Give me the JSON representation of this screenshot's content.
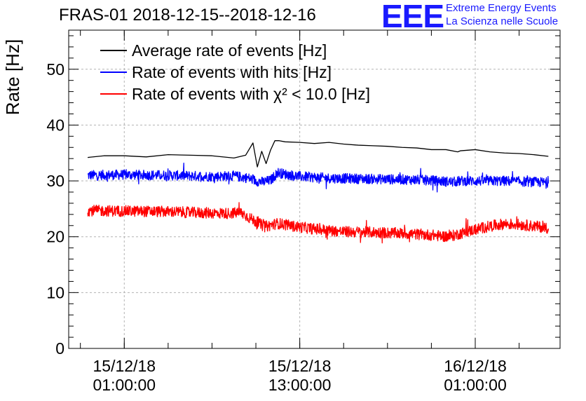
{
  "header": {
    "title": "FRAS-01 2018-12-15--2018-12-16",
    "logo_letters": "EEE",
    "logo_line1": "Extreme Energy Events",
    "logo_line2": "La Scienza nelle Scuole"
  },
  "colors": {
    "average": "#000000",
    "hits": "#0000ff",
    "chi2": "#ff0000",
    "grid": "#b3b3b3",
    "logo": "#1a1aff"
  },
  "chart_data": {
    "type": "line",
    "title": "FRAS-01 2018-12-15--2018-12-16",
    "ylabel": "Rate [Hz]",
    "xlabel": "",
    "x_unit": "hours since 2018-12-15 00:00",
    "xlim": [
      -2.8,
      30.8
    ],
    "ylim": [
      0,
      57
    ],
    "y_ticks": [
      0,
      10,
      20,
      30,
      40,
      50
    ],
    "x_ticks": [
      {
        "x": 1,
        "line1": "15/12/18",
        "line2": "01:00:00"
      },
      {
        "x": 13,
        "line1": "15/12/18",
        "line2": "13:00:00"
      },
      {
        "x": 25,
        "line1": "16/12/18",
        "line2": "01:00:00"
      }
    ],
    "grid": true,
    "legend_position": "top-left",
    "series": [
      {
        "name": "Average rate of events [Hz]",
        "color": "#000000",
        "x": [
          -1.5,
          -0.4,
          1,
          2.5,
          4,
          5.5,
          7,
          8.5,
          9.3,
          9.8,
          10.1,
          10.4,
          10.7,
          11,
          11.3,
          11.6,
          12,
          13,
          14,
          15,
          16,
          17,
          18,
          19,
          20,
          21,
          22,
          23,
          23.8,
          24,
          25,
          26,
          27,
          28,
          29,
          30
        ],
        "y": [
          34.2,
          34.5,
          34.5,
          34.3,
          34.7,
          34.6,
          34.5,
          34.1,
          34.6,
          36.8,
          32.5,
          35.3,
          33.1,
          35.5,
          37.2,
          37.2,
          37.0,
          36.9,
          36.7,
          36.9,
          36.6,
          36.4,
          36.3,
          36.2,
          36.0,
          35.9,
          35.6,
          35.6,
          35.2,
          35.4,
          35.6,
          35.2,
          35.0,
          34.9,
          34.7,
          34.4
        ]
      },
      {
        "name": "Rate of events with hits [Hz]",
        "color": "#0000ff",
        "x": [
          -1.5,
          1,
          4,
          7,
          8.5,
          9.5,
          10,
          10.5,
          11,
          11.5,
          12,
          13,
          15,
          17,
          19,
          21,
          22.5,
          23.5,
          24,
          25,
          27,
          29,
          30
        ],
        "y": [
          31.0,
          31.1,
          31.0,
          30.8,
          30.9,
          30.5,
          30.0,
          29.8,
          30.1,
          31.5,
          31.2,
          30.8,
          30.5,
          30.4,
          30.3,
          30.2,
          30.0,
          29.8,
          30.0,
          30.0,
          30.0,
          29.8,
          29.7
        ],
        "noise": 0.9
      },
      {
        "name": "Rate of events with χ² < 10.0 [Hz]",
        "color": "#ff0000",
        "x": [
          -1.5,
          1,
          4,
          6,
          8,
          9,
          9.8,
          10.6,
          11.5,
          12.5,
          14,
          16,
          18,
          20,
          22,
          23.2,
          24,
          25,
          26,
          27,
          28,
          30
        ],
        "y": [
          24.7,
          24.6,
          24.5,
          24.3,
          24.2,
          24.3,
          23.0,
          21.8,
          22.4,
          21.9,
          21.4,
          20.9,
          20.8,
          20.6,
          20.3,
          20.0,
          20.6,
          21.3,
          21.9,
          22.3,
          22.2,
          21.6
        ],
        "noise": 1.0
      }
    ]
  }
}
